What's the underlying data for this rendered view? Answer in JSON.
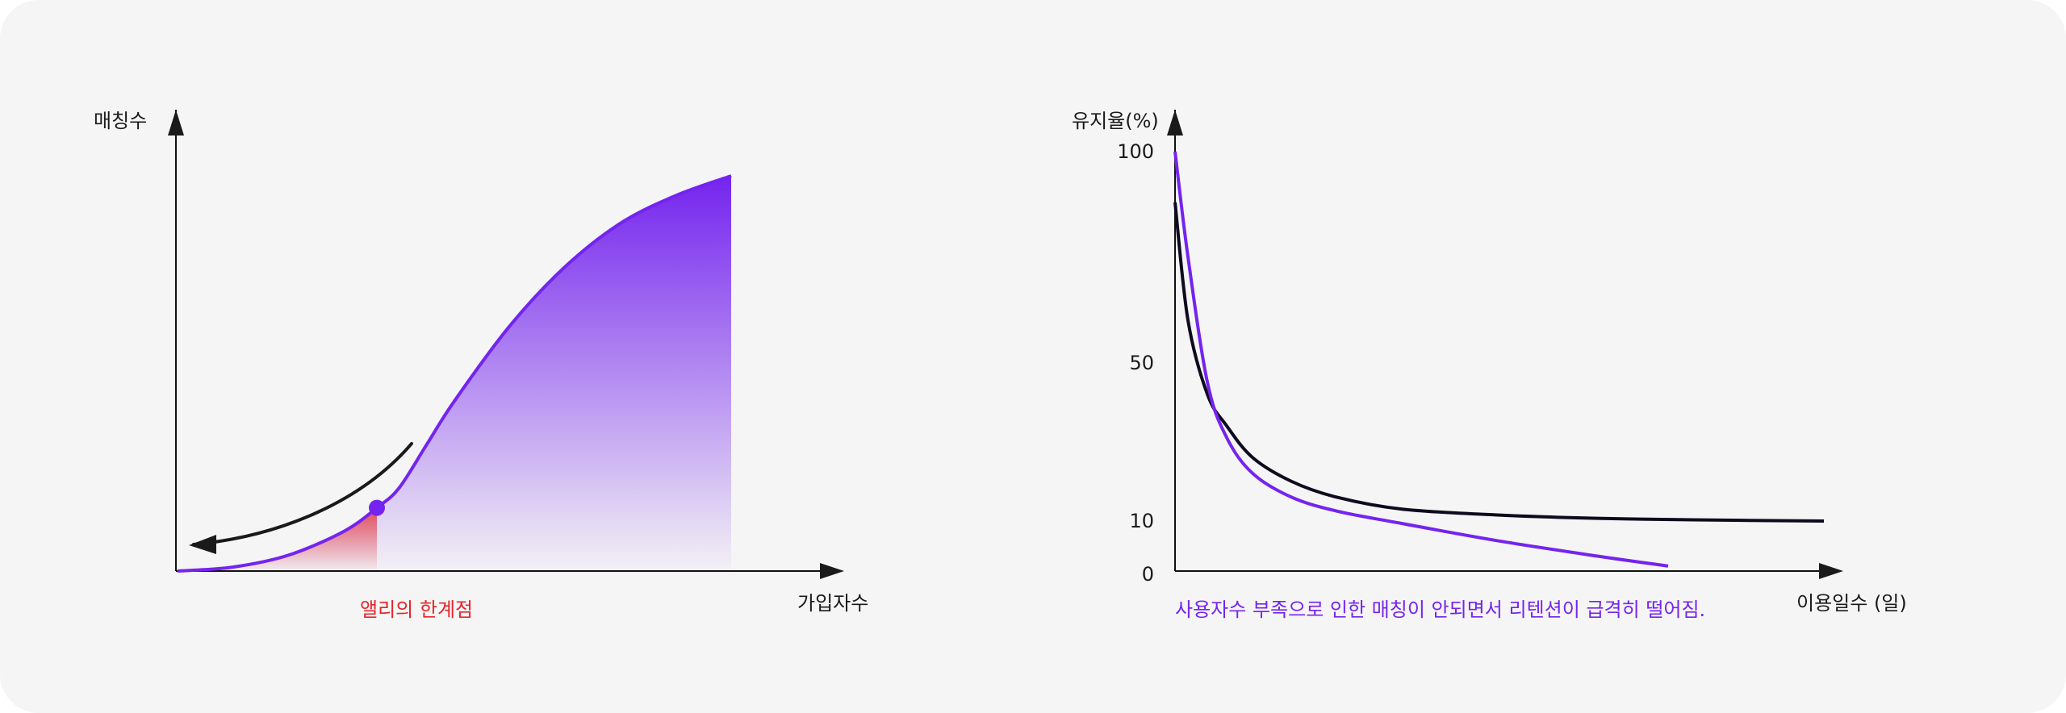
{
  "colors": {
    "purple": "#7424ee",
    "red": "#e5262b",
    "black": "#111111",
    "background": "#f5f5f5"
  },
  "chart_data": [
    {
      "type": "area",
      "ylabel": "매칭수",
      "xlabel": "가입자수",
      "annotation": "앨리의 한계점",
      "grid": false,
      "series": [
        {
          "x": [
            0,
            0.1,
            0.2,
            0.3,
            0.36,
            0.4,
            0.45,
            0.5,
            0.6,
            0.7,
            0.8,
            0.9,
            1.0
          ],
          "values": [
            0,
            0.01,
            0.04,
            0.1,
            0.16,
            0.21,
            0.32,
            0.43,
            0.62,
            0.77,
            0.88,
            0.95,
            1.0
          ]
        }
      ],
      "threshold_x": 0.36
    },
    {
      "type": "line",
      "ylabel": "유지율(%)",
      "xlabel": "이용일수 (일)",
      "annotation": "사용자수 부족으로 인한 매칭이 안되면서 리텐션이 급격히 떨어짐.",
      "yticks": [
        "100",
        "50",
        "10",
        "0"
      ],
      "grid": false,
      "series": [
        {
          "x": [
            0,
            0.02,
            0.05,
            0.08,
            0.12,
            0.18,
            0.25,
            0.35,
            0.5,
            0.65,
            0.8,
            1.0
          ],
          "values": [
            88,
            60,
            42,
            34,
            26,
            20,
            16,
            13,
            11.5,
            10.7,
            10.3,
            10
          ]
        },
        {
          "x": [
            0,
            0.02,
            0.05,
            0.08,
            0.12,
            0.18,
            0.25,
            0.35,
            0.5,
            0.65,
            0.76
          ],
          "values": [
            100,
            75,
            45,
            31,
            22,
            16,
            12.5,
            9.5,
            6,
            3,
            1
          ]
        }
      ]
    }
  ]
}
